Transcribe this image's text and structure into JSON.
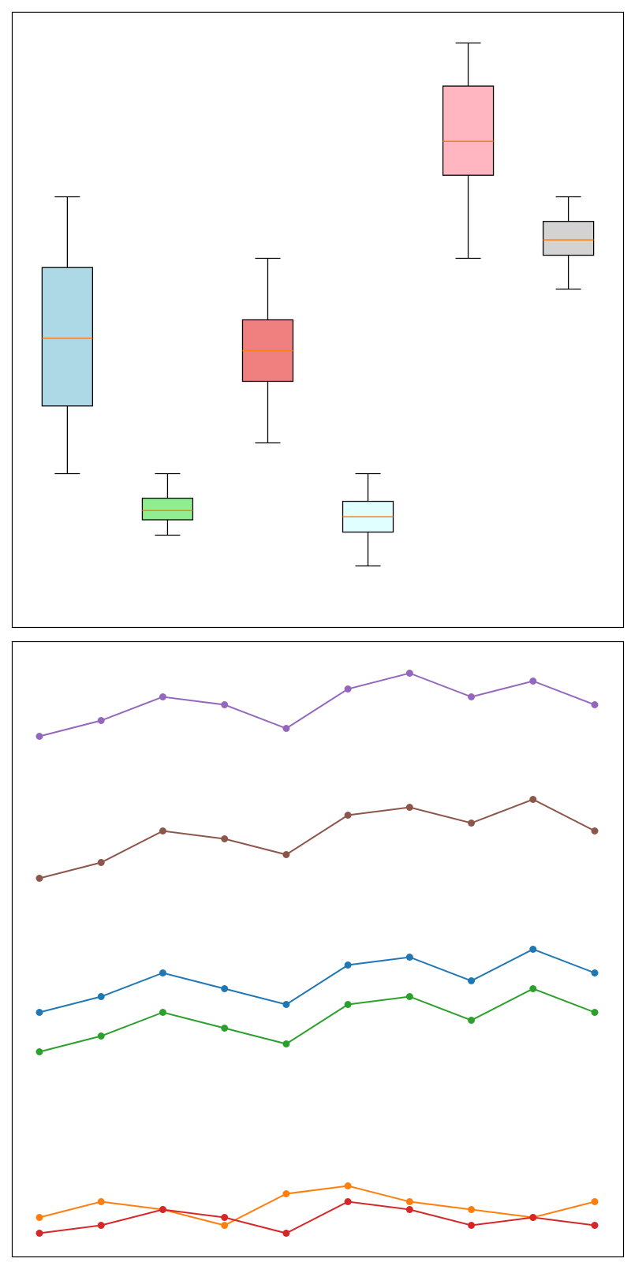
{
  "chart_data": [
    {
      "type": "box",
      "ylim": [
        0,
        100
      ],
      "grid": false,
      "median_color": "#ff7f0e",
      "boxes": [
        {
          "whisker_low": 25,
          "q1": 36,
          "median": 47,
          "q3": 58.5,
          "whisker_high": 70,
          "color": "#add8e6"
        },
        {
          "whisker_low": 15,
          "q1": 17.5,
          "median": 19,
          "q3": 21,
          "whisker_high": 25,
          "color": "#90ee90"
        },
        {
          "whisker_low": 30,
          "q1": 40,
          "median": 45,
          "q3": 50,
          "whisker_high": 60,
          "color": "#f08080"
        },
        {
          "whisker_low": 10,
          "q1": 15.5,
          "median": 18,
          "q3": 20.5,
          "whisker_high": 25,
          "color": "#e0ffff"
        },
        {
          "whisker_low": 60,
          "q1": 73.5,
          "median": 79,
          "q3": 88,
          "whisker_high": 95,
          "color": "#ffb6c1"
        },
        {
          "whisker_low": 55,
          "q1": 60.5,
          "median": 63,
          "q3": 66,
          "whisker_high": 70,
          "color": "#d3d3d3"
        }
      ]
    },
    {
      "type": "line",
      "x": [
        1,
        2,
        3,
        4,
        5,
        6,
        7,
        8,
        9,
        10
      ],
      "ylim": [
        0,
        78
      ],
      "grid": false,
      "series": [
        {
          "color": "#9467bd",
          "values": [
            66,
            68,
            71,
            70,
            67,
            72,
            74,
            71,
            73,
            70
          ]
        },
        {
          "color": "#8c564b",
          "values": [
            48,
            50,
            54,
            53,
            51,
            56,
            57,
            55,
            58,
            54
          ]
        },
        {
          "color": "#1f77b4",
          "values": [
            31,
            33,
            36,
            34,
            32,
            37,
            38,
            35,
            39,
            36
          ]
        },
        {
          "color": "#2ca02c",
          "values": [
            26,
            28,
            31,
            29,
            27,
            32,
            33,
            30,
            34,
            31
          ]
        },
        {
          "color": "#ff7f0e",
          "values": [
            5,
            7,
            6,
            4,
            8,
            9,
            7,
            6,
            5,
            7
          ]
        },
        {
          "color": "#d62728",
          "values": [
            3,
            4,
            6,
            5,
            3,
            7,
            6,
            4,
            5,
            4
          ]
        }
      ]
    }
  ]
}
